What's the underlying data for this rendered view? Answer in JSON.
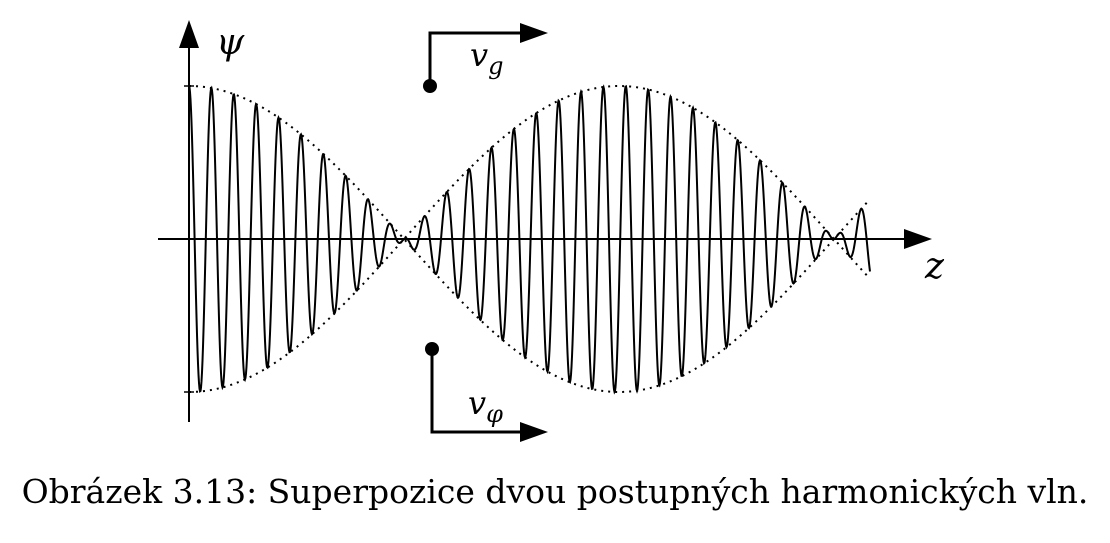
{
  "figure": {
    "y_axis_label": "ψ",
    "x_axis_label": "z",
    "group_velocity": {
      "symbol": "v",
      "subscript": "g"
    },
    "phase_velocity": {
      "symbol": "v",
      "subscript": "φ"
    }
  },
  "caption": "Obrázek 3.13: Superpozice dvou postupných harmonických vln."
}
